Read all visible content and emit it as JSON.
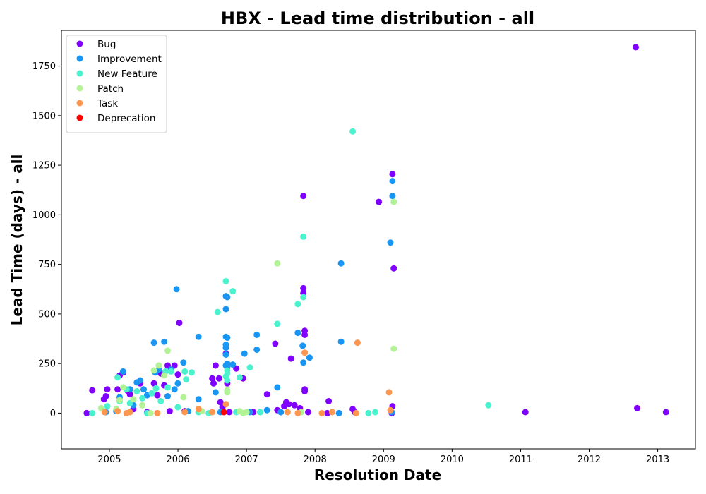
{
  "chart_data": {
    "type": "scatter",
    "title": "HBX - Lead time distribution - all",
    "xlabel": "Resolution Date",
    "ylabel": "Lead Time (days) - all",
    "xlim": [
      2004.3,
      2013.55
    ],
    "ylim": [
      -180,
      1930
    ],
    "x_ticks": [
      2005,
      2006,
      2007,
      2008,
      2009,
      2010,
      2011,
      2012,
      2013
    ],
    "x_tick_labels": [
      "2005",
      "2006",
      "2007",
      "2008",
      "2009",
      "2010",
      "2011",
      "2012",
      "2013"
    ],
    "y_ticks": [
      0,
      250,
      500,
      750,
      1000,
      1250,
      1500,
      1750
    ],
    "y_tick_labels": [
      "0",
      "250",
      "500",
      "750",
      "1000",
      "1250",
      "1500",
      "1750"
    ],
    "legend_position": "upper-left",
    "grid": false,
    "series": [
      {
        "name": "Bug",
        "color": "#8000ff",
        "points": [
          [
            2004.67,
            0
          ],
          [
            2004.75,
            115
          ],
          [
            2004.92,
            70
          ],
          [
            2004.95,
            85
          ],
          [
            2004.97,
            120
          ],
          [
            2005.12,
            120
          ],
          [
            2005.15,
            190
          ],
          [
            2005.2,
            205
          ],
          [
            2005.27,
            110
          ],
          [
            2005.3,
            95
          ],
          [
            2005.35,
            20
          ],
          [
            2005.45,
            150
          ],
          [
            2005.55,
            5
          ],
          [
            2005.65,
            150
          ],
          [
            2005.7,
            90
          ],
          [
            2005.75,
            200
          ],
          [
            2005.8,
            140
          ],
          [
            2005.85,
            240
          ],
          [
            2005.88,
            10
          ],
          [
            2005.95,
            240
          ],
          [
            2006.0,
            195
          ],
          [
            2006.02,
            455
          ],
          [
            2006.1,
            10
          ],
          [
            2006.5,
            175
          ],
          [
            2006.52,
            150
          ],
          [
            2006.55,
            240
          ],
          [
            2006.6,
            175
          ],
          [
            2006.62,
            55
          ],
          [
            2006.65,
            30
          ],
          [
            2006.7,
            300
          ],
          [
            2006.72,
            150
          ],
          [
            2006.75,
            5
          ],
          [
            2006.85,
            225
          ],
          [
            2006.95,
            175
          ],
          [
            2007.1,
            5
          ],
          [
            2007.3,
            95
          ],
          [
            2007.42,
            350
          ],
          [
            2007.45,
            15
          ],
          [
            2007.5,
            5
          ],
          [
            2007.55,
            35
          ],
          [
            2007.58,
            55
          ],
          [
            2007.62,
            45
          ],
          [
            2007.65,
            275
          ],
          [
            2007.7,
            40
          ],
          [
            2007.78,
            25
          ],
          [
            2007.83,
            630
          ],
          [
            2007.83,
            605
          ],
          [
            2007.85,
            415
          ],
          [
            2007.85,
            395
          ],
          [
            2007.83,
            1095
          ],
          [
            2007.85,
            120
          ],
          [
            2007.85,
            110
          ],
          [
            2007.9,
            5
          ],
          [
            2008.2,
            60
          ],
          [
            2008.18,
            0
          ],
          [
            2008.55,
            20
          ],
          [
            2008.58,
            5
          ],
          [
            2008.93,
            1065
          ],
          [
            2009.13,
            1205
          ],
          [
            2009.13,
            35
          ],
          [
            2009.15,
            730
          ],
          [
            2009.12,
            0
          ],
          [
            2011.07,
            5
          ],
          [
            2012.68,
            1845
          ],
          [
            2012.7,
            25
          ],
          [
            2013.12,
            5
          ]
        ]
      },
      {
        "name": "Improvement",
        "color": "#1996f3",
        "points": [
          [
            2004.95,
            5
          ],
          [
            2005.1,
            10
          ],
          [
            2005.15,
            80
          ],
          [
            2005.2,
            210
          ],
          [
            2005.3,
            120
          ],
          [
            2005.35,
            40
          ],
          [
            2005.4,
            155
          ],
          [
            2005.45,
            165
          ],
          [
            2005.5,
            120
          ],
          [
            2005.55,
            90
          ],
          [
            2005.65,
            355
          ],
          [
            2005.67,
            205
          ],
          [
            2005.72,
            220
          ],
          [
            2005.8,
            360
          ],
          [
            2005.85,
            85
          ],
          [
            2005.9,
            220
          ],
          [
            2005.95,
            120
          ],
          [
            2005.98,
            625
          ],
          [
            2006.0,
            150
          ],
          [
            2006.08,
            255
          ],
          [
            2006.15,
            10
          ],
          [
            2006.3,
            385
          ],
          [
            2006.3,
            70
          ],
          [
            2006.55,
            105
          ],
          [
            2006.62,
            5
          ],
          [
            2006.7,
            590
          ],
          [
            2006.72,
            585
          ],
          [
            2006.7,
            525
          ],
          [
            2006.7,
            385
          ],
          [
            2006.72,
            380
          ],
          [
            2006.7,
            345
          ],
          [
            2006.7,
            330
          ],
          [
            2006.7,
            295
          ],
          [
            2006.72,
            250
          ],
          [
            2006.7,
            240
          ],
          [
            2006.72,
            230
          ],
          [
            2006.8,
            245
          ],
          [
            2006.97,
            300
          ],
          [
            2007.05,
            5
          ],
          [
            2007.15,
            395
          ],
          [
            2007.15,
            320
          ],
          [
            2007.3,
            15
          ],
          [
            2007.45,
            130
          ],
          [
            2007.5,
            5
          ],
          [
            2007.75,
            405
          ],
          [
            2007.82,
            340
          ],
          [
            2007.83,
            255
          ],
          [
            2007.92,
            280
          ],
          [
            2008.38,
            755
          ],
          [
            2008.38,
            360
          ],
          [
            2008.35,
            0
          ],
          [
            2009.1,
            860
          ],
          [
            2009.13,
            1170
          ],
          [
            2009.13,
            1095
          ],
          [
            2009.12,
            5
          ]
        ]
      },
      {
        "name": "New Feature",
        "color": "#4cf2ce",
        "points": [
          [
            2004.75,
            0
          ],
          [
            2004.97,
            35
          ],
          [
            2005.12,
            180
          ],
          [
            2005.15,
            60
          ],
          [
            2005.25,
            120
          ],
          [
            2005.3,
            50
          ],
          [
            2005.4,
            110
          ],
          [
            2005.48,
            75
          ],
          [
            2005.55,
            0
          ],
          [
            2005.62,
            100
          ],
          [
            2005.68,
            125
          ],
          [
            2005.75,
            60
          ],
          [
            2005.82,
            210
          ],
          [
            2005.85,
            130
          ],
          [
            2005.9,
            210
          ],
          [
            2006.0,
            30
          ],
          [
            2006.1,
            210
          ],
          [
            2006.12,
            170
          ],
          [
            2006.2,
            205
          ],
          [
            2006.45,
            0
          ],
          [
            2006.58,
            510
          ],
          [
            2006.7,
            665
          ],
          [
            2006.72,
            215
          ],
          [
            2006.72,
            200
          ],
          [
            2006.7,
            185
          ],
          [
            2006.72,
            165
          ],
          [
            2006.8,
            615
          ],
          [
            2006.9,
            180
          ],
          [
            2007.05,
            230
          ],
          [
            2007.45,
            450
          ],
          [
            2007.75,
            550
          ],
          [
            2007.83,
            890
          ],
          [
            2007.83,
            585
          ],
          [
            2008.55,
            1420
          ],
          [
            2008.78,
            0
          ],
          [
            2008.88,
            5
          ],
          [
            2010.53,
            40
          ],
          [
            2006.3,
            5
          ],
          [
            2006.85,
            5
          ],
          [
            2007.2,
            5
          ]
        ]
      },
      {
        "name": "Patch",
        "color": "#b2f396",
        "points": [
          [
            2004.88,
            25
          ],
          [
            2005.1,
            20
          ],
          [
            2005.15,
            65
          ],
          [
            2005.2,
            130
          ],
          [
            2005.35,
            70
          ],
          [
            2005.48,
            40
          ],
          [
            2005.65,
            215
          ],
          [
            2005.72,
            240
          ],
          [
            2005.8,
            190
          ],
          [
            2005.85,
            315
          ],
          [
            2006.08,
            80
          ],
          [
            2006.72,
            115
          ],
          [
            2006.72,
            105
          ],
          [
            2006.9,
            10
          ],
          [
            2007.0,
            5
          ],
          [
            2007.45,
            755
          ],
          [
            2007.8,
            5
          ],
          [
            2009.15,
            1065
          ],
          [
            2009.15,
            325
          ],
          [
            2005.6,
            0
          ],
          [
            2006.35,
            10
          ],
          [
            2006.95,
            0
          ]
        ]
      },
      {
        "name": "Task",
        "color": "#ff9650",
        "points": [
          [
            2004.93,
            5
          ],
          [
            2005.12,
            10
          ],
          [
            2005.25,
            0
          ],
          [
            2005.3,
            5
          ],
          [
            2005.7,
            0
          ],
          [
            2006.1,
            5
          ],
          [
            2006.3,
            20
          ],
          [
            2006.5,
            5
          ],
          [
            2006.7,
            45
          ],
          [
            2007.6,
            5
          ],
          [
            2007.75,
            0
          ],
          [
            2007.85,
            305
          ],
          [
            2008.1,
            0
          ],
          [
            2008.25,
            5
          ],
          [
            2008.6,
            0
          ],
          [
            2008.62,
            355
          ],
          [
            2009.08,
            105
          ],
          [
            2009.1,
            15
          ]
        ]
      },
      {
        "name": "Deprecation",
        "color": "#ff0000",
        "points": [
          [
            2006.67,
            5
          ]
        ]
      }
    ]
  }
}
